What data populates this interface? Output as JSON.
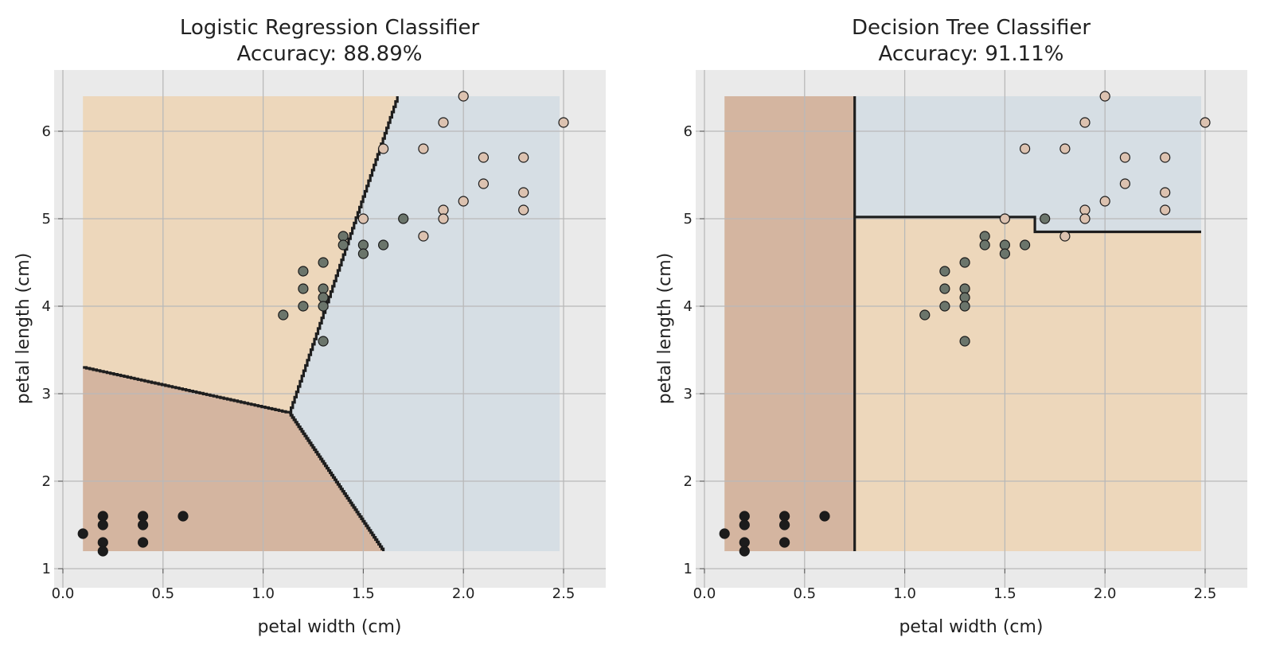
{
  "chart_data": [
    {
      "type": "scatter",
      "title": "Logistic Regression Classifier",
      "subtitle": "Accuracy: 88.89%",
      "xlabel": "petal width (cm)",
      "ylabel": "petal length (cm)",
      "xlim": [
        0.0,
        2.6
      ],
      "ylim": [
        1.0,
        6.55
      ],
      "xticks": [
        0.0,
        0.5,
        1.0,
        1.5,
        2.0,
        2.5
      ],
      "xtick_labels": [
        "0.0",
        "0.5",
        "1.0",
        "1.5",
        "2.0",
        "2.5"
      ],
      "yticks": [
        1,
        2,
        3,
        4,
        5,
        6
      ],
      "ytick_labels": [
        "1",
        "2",
        "3",
        "4",
        "5",
        "6"
      ],
      "grid": true,
      "regions": [
        {
          "class": "class-0",
          "color": "#d4b5a0",
          "polygon": [
            [
              0.1,
              1.2
            ],
            [
              0.1,
              3.3
            ],
            [
              1.13,
              2.78
            ],
            [
              1.6,
              1.2
            ]
          ]
        },
        {
          "class": "class-1",
          "color": "#edd7bb",
          "polygon": [
            [
              0.1,
              3.3
            ],
            [
              0.1,
              6.4
            ],
            [
              1.67,
              6.4
            ],
            [
              1.13,
              2.78
            ]
          ]
        },
        {
          "class": "class-2",
          "color": "#d6dee4",
          "polygon": [
            [
              1.67,
              6.4
            ],
            [
              2.48,
              6.4
            ],
            [
              2.48,
              1.2
            ],
            [
              1.6,
              1.2
            ],
            [
              1.13,
              2.78
            ]
          ]
        }
      ],
      "boundaries": [
        [
          [
            0.1,
            3.3
          ],
          [
            1.13,
            2.78
          ]
        ],
        [
          [
            1.13,
            2.78
          ],
          [
            1.67,
            6.4
          ]
        ],
        [
          [
            1.13,
            2.78
          ],
          [
            1.6,
            1.2
          ]
        ]
      ],
      "boundary_style": "staircase",
      "series": [
        {
          "color": "#1c1c1c",
          "points": [
            [
              0.1,
              1.4
            ],
            [
              0.2,
              1.6
            ],
            [
              0.2,
              1.5
            ],
            [
              0.2,
              1.3
            ],
            [
              0.2,
              1.2
            ],
            [
              0.4,
              1.6
            ],
            [
              0.4,
              1.5
            ],
            [
              0.4,
              1.3
            ],
            [
              0.6,
              1.6
            ]
          ]
        },
        {
          "color": "#6b756b",
          "points": [
            [
              1.1,
              3.9
            ],
            [
              1.2,
              4.4
            ],
            [
              1.2,
              4.2
            ],
            [
              1.2,
              4.0
            ],
            [
              1.3,
              4.5
            ],
            [
              1.3,
              4.2
            ],
            [
              1.3,
              4.1
            ],
            [
              1.3,
              4.0
            ],
            [
              1.3,
              3.6
            ],
            [
              1.4,
              4.8
            ],
            [
              1.4,
              4.7
            ],
            [
              1.5,
              4.7
            ],
            [
              1.5,
              4.6
            ],
            [
              1.6,
              4.7
            ],
            [
              1.7,
              5.0
            ]
          ]
        },
        {
          "color": "#dcc2b0",
          "points": [
            [
              1.5,
              5.0
            ],
            [
              1.6,
              5.8
            ],
            [
              1.8,
              5.8
            ],
            [
              1.8,
              4.8
            ],
            [
              1.9,
              6.1
            ],
            [
              1.9,
              5.1
            ],
            [
              1.9,
              5.0
            ],
            [
              2.0,
              6.4
            ],
            [
              2.0,
              5.2
            ],
            [
              2.1,
              5.7
            ],
            [
              2.1,
              5.4
            ],
            [
              2.3,
              5.7
            ],
            [
              2.3,
              5.3
            ],
            [
              2.3,
              5.1
            ],
            [
              2.5,
              6.1
            ]
          ]
        }
      ]
    },
    {
      "type": "scatter",
      "title": "Decision Tree Classifier",
      "subtitle": "Accuracy: 91.11%",
      "xlabel": "petal width (cm)",
      "ylabel": "petal length (cm)",
      "xlim": [
        0.0,
        2.6
      ],
      "ylim": [
        1.0,
        6.55
      ],
      "xticks": [
        0.0,
        0.5,
        1.0,
        1.5,
        2.0,
        2.5
      ],
      "xtick_labels": [
        "0.0",
        "0.5",
        "1.0",
        "1.5",
        "2.0",
        "2.5"
      ],
      "yticks": [
        1,
        2,
        3,
        4,
        5,
        6
      ],
      "ytick_labels": [
        "1",
        "2",
        "3",
        "4",
        "5",
        "6"
      ],
      "grid": true,
      "regions": [
        {
          "class": "class-0",
          "color": "#d4b5a0",
          "polygon": [
            [
              0.1,
              1.2
            ],
            [
              0.1,
              6.4
            ],
            [
              0.75,
              6.4
            ],
            [
              0.75,
              1.2
            ]
          ]
        },
        {
          "class": "class-1",
          "color": "#edd7bb",
          "polygon": [
            [
              0.75,
              1.2
            ],
            [
              0.75,
              5.02
            ],
            [
              1.65,
              5.02
            ],
            [
              1.65,
              4.85
            ],
            [
              2.48,
              4.85
            ],
            [
              2.48,
              1.2
            ]
          ]
        },
        {
          "class": "class-2",
          "color": "#d6dee4",
          "polygon": [
            [
              0.75,
              5.02
            ],
            [
              0.75,
              6.4
            ],
            [
              2.48,
              6.4
            ],
            [
              2.48,
              4.85
            ],
            [
              1.65,
              4.85
            ],
            [
              1.65,
              5.02
            ]
          ]
        }
      ],
      "boundaries": [
        [
          [
            0.75,
            1.2
          ],
          [
            0.75,
            6.4
          ]
        ],
        [
          [
            0.75,
            5.02
          ],
          [
            1.65,
            5.02
          ],
          [
            1.65,
            4.85
          ],
          [
            2.48,
            4.85
          ]
        ]
      ],
      "boundary_style": "straight",
      "series": [
        {
          "color": "#1c1c1c",
          "points": [
            [
              0.1,
              1.4
            ],
            [
              0.2,
              1.6
            ],
            [
              0.2,
              1.5
            ],
            [
              0.2,
              1.3
            ],
            [
              0.2,
              1.2
            ],
            [
              0.4,
              1.6
            ],
            [
              0.4,
              1.5
            ],
            [
              0.4,
              1.3
            ],
            [
              0.6,
              1.6
            ]
          ]
        },
        {
          "color": "#6b756b",
          "points": [
            [
              1.1,
              3.9
            ],
            [
              1.2,
              4.4
            ],
            [
              1.2,
              4.2
            ],
            [
              1.2,
              4.0
            ],
            [
              1.3,
              4.5
            ],
            [
              1.3,
              4.2
            ],
            [
              1.3,
              4.1
            ],
            [
              1.3,
              4.0
            ],
            [
              1.3,
              3.6
            ],
            [
              1.4,
              4.8
            ],
            [
              1.4,
              4.7
            ],
            [
              1.5,
              4.7
            ],
            [
              1.5,
              4.6
            ],
            [
              1.6,
              4.7
            ],
            [
              1.7,
              5.0
            ]
          ]
        },
        {
          "color": "#dcc2b0",
          "points": [
            [
              1.5,
              5.0
            ],
            [
              1.6,
              5.8
            ],
            [
              1.8,
              5.8
            ],
            [
              1.8,
              4.8
            ],
            [
              1.9,
              6.1
            ],
            [
              1.9,
              5.1
            ],
            [
              1.9,
              5.0
            ],
            [
              2.0,
              6.4
            ],
            [
              2.0,
              5.2
            ],
            [
              2.1,
              5.7
            ],
            [
              2.1,
              5.4
            ],
            [
              2.3,
              5.7
            ],
            [
              2.3,
              5.3
            ],
            [
              2.3,
              5.1
            ],
            [
              2.5,
              6.1
            ]
          ]
        }
      ]
    }
  ]
}
